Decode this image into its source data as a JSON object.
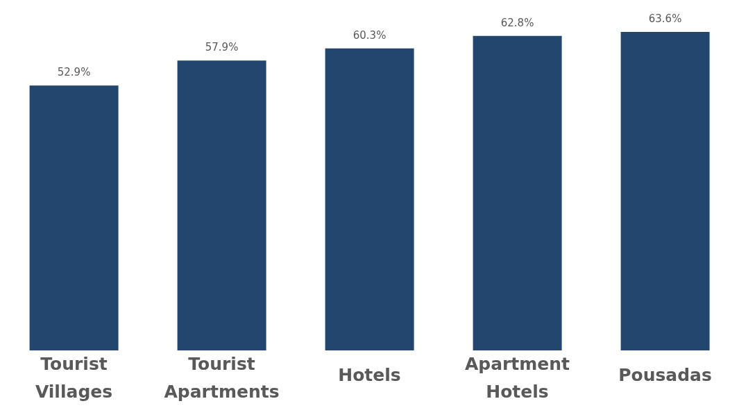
{
  "chart_data": {
    "type": "bar",
    "categories": [
      "Tourist Villages",
      "Tourist Apartments",
      "Hotels",
      "Apartment Hotels",
      "Pousadas"
    ],
    "values": [
      52.9,
      57.9,
      60.3,
      62.8,
      63.6
    ],
    "value_labels": [
      "52.9%",
      "57.9%",
      "60.3%",
      "62.8%",
      "63.6%"
    ],
    "color": "#23466e"
  }
}
